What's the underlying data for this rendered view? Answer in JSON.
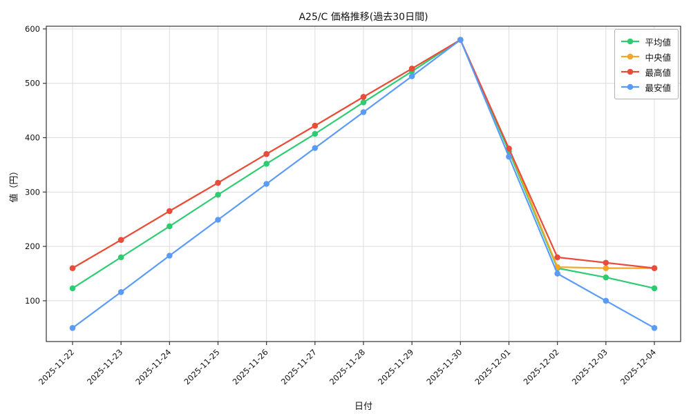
{
  "chart_data": {
    "type": "line",
    "title": "A25/C 価格推移(過去30日間)",
    "xlabel": "日付",
    "ylabel": "値（円）",
    "categories": [
      "2025-11-22",
      "2025-11-23",
      "2025-11-24",
      "2025-11-25",
      "2025-11-26",
      "2025-11-27",
      "2025-11-28",
      "2025-11-29",
      "2025-11-30",
      "2025-12-01",
      "2025-12-02",
      "2025-12-03",
      "2025-12-04"
    ],
    "series": [
      {
        "name": "平均値",
        "color": "#2ecc71",
        "values": [
          123,
          180,
          237,
          295,
          352,
          407,
          465,
          522,
          580,
          375,
          160,
          143,
          123
        ]
      },
      {
        "name": "中央値",
        "color": "#f5a623",
        "values": [
          160,
          212,
          265,
          317,
          370,
          422,
          475,
          527,
          580,
          380,
          162,
          160,
          160
        ]
      },
      {
        "name": "最高値",
        "color": "#e74c3c",
        "values": [
          160,
          212,
          265,
          317,
          370,
          422,
          475,
          527,
          580,
          380,
          180,
          170,
          160
        ]
      },
      {
        "name": "最安値",
        "color": "#5b9bf8",
        "values": [
          50,
          116,
          183,
          249,
          315,
          381,
          447,
          513,
          580,
          365,
          150,
          100,
          50
        ]
      }
    ],
    "yticks": [
      100,
      200,
      300,
      400,
      500,
      600
    ],
    "ylim": [
      25,
      605
    ],
    "grid": true,
    "legend_position": "upper right",
    "grid_color": "#dcdcdc",
    "axis_color": "#333333"
  }
}
